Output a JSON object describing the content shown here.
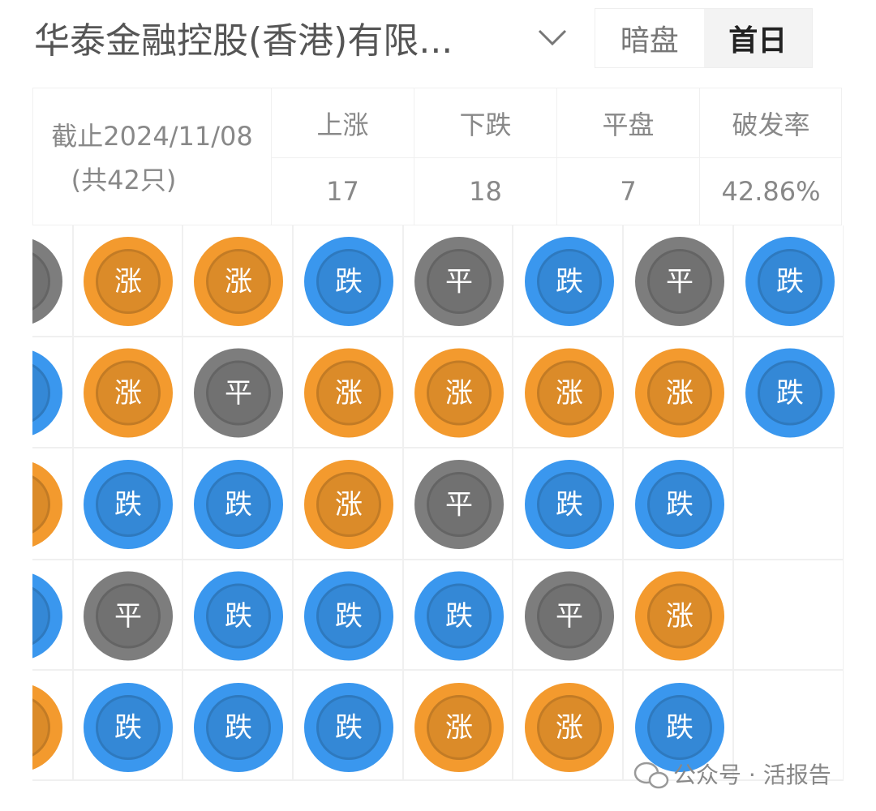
{
  "header": {
    "title": "华泰金融控股(香港)有限...",
    "tabs": [
      "暗盘",
      "首日"
    ],
    "active_tab": 1
  },
  "summary": {
    "date_label": "截止2024/11/08",
    "count_label": "(共42只)",
    "columns": [
      "上涨",
      "下跌",
      "平盘",
      "破发率"
    ],
    "values": [
      "17",
      "18",
      "7",
      "42.86%"
    ]
  },
  "colors": {
    "涨": "#f39a2e",
    "跌": "#3a97ee",
    "平": "#7d7d7d"
  },
  "grid": {
    "rows": [
      [
        {
          "color": "#7d7d7d"
        },
        {
          "label": "涨"
        },
        {
          "label": "涨"
        },
        {
          "label": "跌"
        },
        {
          "label": "平"
        },
        {
          "label": "跌"
        },
        {
          "label": "平"
        },
        {
          "label": "跌"
        }
      ],
      [
        {
          "color": "#3a97ee"
        },
        {
          "label": "涨"
        },
        {
          "label": "平"
        },
        {
          "label": "涨"
        },
        {
          "label": "涨"
        },
        {
          "label": "涨"
        },
        {
          "label": "涨"
        },
        {
          "label": "跌"
        }
      ],
      [
        {
          "color": "#f39a2e"
        },
        {
          "label": "跌"
        },
        {
          "label": "跌"
        },
        {
          "label": "涨"
        },
        {
          "label": "平"
        },
        {
          "label": "跌"
        },
        {
          "label": "跌"
        }
      ],
      [
        {
          "color": "#3a97ee"
        },
        {
          "label": "平"
        },
        {
          "label": "跌"
        },
        {
          "label": "跌"
        },
        {
          "label": "跌"
        },
        {
          "label": "平"
        },
        {
          "label": "涨"
        }
      ],
      [
        {
          "color": "#f39a2e"
        },
        {
          "label": "跌"
        },
        {
          "label": "跌"
        },
        {
          "label": "跌"
        },
        {
          "label": "涨"
        },
        {
          "label": "涨"
        },
        {
          "label": "跌"
        }
      ]
    ]
  },
  "watermark": "公众号 · 活报告"
}
